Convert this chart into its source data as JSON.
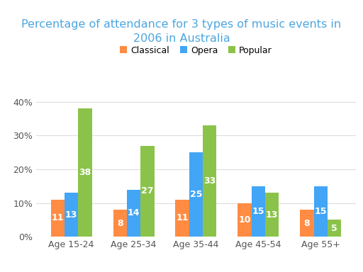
{
  "title": "Percentage of attendance for 3 types of music events in\n2006 in Australia",
  "categories": [
    "Age 15-24",
    "Age 25-34",
    "Age 35-44",
    "Age 45-54",
    "Age 55+"
  ],
  "series": {
    "Classical": [
      11,
      8,
      11,
      10,
      8
    ],
    "Opera": [
      13,
      14,
      25,
      15,
      15
    ],
    "Popular": [
      38,
      27,
      33,
      13,
      5
    ]
  },
  "colors": {
    "Classical": "#FF8C42",
    "Opera": "#42A5F5",
    "Popular": "#8BC34A"
  },
  "ylim": [
    0,
    42
  ],
  "yticks": [
    0,
    10,
    20,
    30,
    40
  ],
  "ytick_labels": [
    "0%",
    "10%",
    "20%",
    "30%",
    "40%"
  ],
  "background_color": "#ffffff",
  "title_color": "#4DA6E0",
  "title_fontsize": 11.5,
  "bar_label_color": "#ffffff",
  "bar_label_fontsize": 9,
  "legend_fontsize": 9,
  "axis_label_fontsize": 9,
  "axis_tick_color": "#555555",
  "grid_color": "#dddddd",
  "bar_width": 0.22
}
